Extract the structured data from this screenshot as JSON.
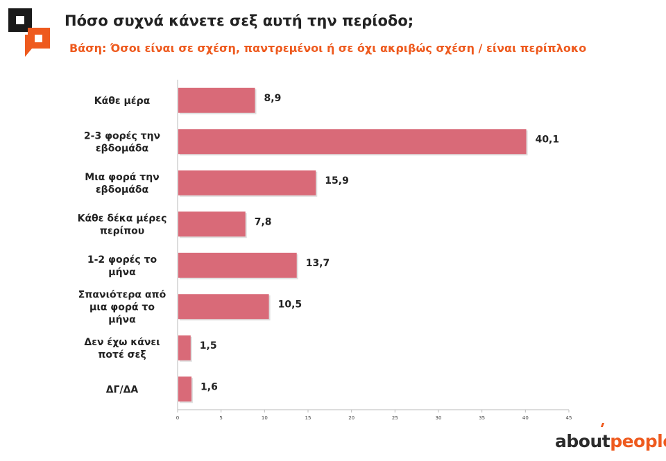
{
  "title": "Πόσο συχνά κάνετε σεξ αυτή την περίοδο;",
  "subtitle": "Βάση: Όσοι είναι σε σχέση, παντρεμένοι ή σε όχι ακριβώς σχέση / είναι περίπλοκο",
  "brand": {
    "part1": "about",
    "part2": "people"
  },
  "colors": {
    "bar": "#d96a78",
    "accent": "#ee5a1e",
    "text": "#222222",
    "axis": "#bbbbbb"
  },
  "chart_data": {
    "type": "bar",
    "orientation": "horizontal",
    "categories": [
      [
        "Κάθε μέρα"
      ],
      [
        "2-3 φορές την",
        "εβδομάδα"
      ],
      [
        "Μια φορά την",
        "εβδομάδα"
      ],
      [
        "Κάθε δέκα μέρες",
        "περίπου"
      ],
      [
        "1-2 φορές το",
        "μήνα"
      ],
      [
        "Σπανιότερα από",
        "μια φορά το",
        "μήνα"
      ],
      [
        "Δεν έχω κάνει",
        "ποτέ σεξ"
      ],
      [
        "ΔΓ/ΔΑ"
      ]
    ],
    "values": [
      8.9,
      40.1,
      15.9,
      7.8,
      13.7,
      10.5,
      1.5,
      1.6
    ],
    "value_labels": [
      "8,9",
      "40,1",
      "15,9",
      "7,8",
      "13,7",
      "10,5",
      "1,5",
      "1,6"
    ],
    "xlim": [
      0,
      45
    ],
    "xticks": [
      "0",
      "5",
      "10",
      "15",
      "20",
      "25",
      "30",
      "35",
      "40",
      "45"
    ],
    "grid": false
  }
}
